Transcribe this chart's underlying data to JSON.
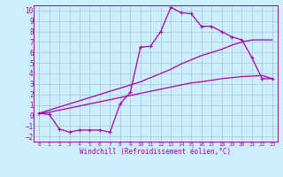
{
  "xlabel": "Windchill (Refroidissement éolien,°C)",
  "bg_color": "#cceeff",
  "grid_color": "#aaccdd",
  "line_color": "#aa00aa",
  "xlim": [
    -0.5,
    23.5
  ],
  "ylim": [
    -2.5,
    10.5
  ],
  "xticks": [
    0,
    1,
    2,
    3,
    4,
    5,
    6,
    7,
    8,
    9,
    10,
    11,
    12,
    13,
    14,
    15,
    16,
    17,
    18,
    19,
    20,
    21,
    22,
    23
  ],
  "yticks": [
    -2,
    -1,
    0,
    1,
    2,
    3,
    4,
    5,
    6,
    7,
    8,
    9,
    10
  ],
  "curve1_x": [
    0,
    1,
    2,
    3,
    4,
    5,
    6,
    7,
    8,
    9,
    10,
    11,
    12,
    13,
    14,
    15,
    16,
    17,
    18,
    19,
    20,
    21,
    22,
    23
  ],
  "curve1_y": [
    0.2,
    0.1,
    -1.3,
    -1.6,
    -1.4,
    -1.4,
    -1.4,
    -1.6,
    1.1,
    2.2,
    6.5,
    6.6,
    8.0,
    10.3,
    9.8,
    9.7,
    8.5,
    8.5,
    8.0,
    7.5,
    7.2,
    5.5,
    3.5,
    3.5
  ],
  "curve2_x": [
    0,
    1,
    2,
    3,
    4,
    5,
    6,
    7,
    8,
    9,
    10,
    11,
    12,
    13,
    14,
    15,
    16,
    17,
    18,
    19,
    20,
    21,
    22,
    23
  ],
  "curve2_y": [
    0.2,
    0.3,
    0.5,
    0.7,
    0.9,
    1.1,
    1.3,
    1.5,
    1.7,
    1.9,
    2.1,
    2.3,
    2.5,
    2.7,
    2.9,
    3.1,
    3.2,
    3.35,
    3.5,
    3.6,
    3.7,
    3.75,
    3.8,
    3.5
  ],
  "curve3_x": [
    0,
    1,
    2,
    3,
    4,
    5,
    6,
    7,
    8,
    9,
    10,
    11,
    12,
    13,
    14,
    15,
    16,
    17,
    18,
    19,
    20,
    21,
    22,
    23
  ],
  "curve3_y": [
    0.2,
    0.5,
    0.8,
    1.1,
    1.4,
    1.7,
    2.0,
    2.3,
    2.6,
    2.9,
    3.2,
    3.6,
    4.0,
    4.4,
    4.9,
    5.3,
    5.7,
    6.0,
    6.3,
    6.7,
    7.0,
    7.2,
    7.2,
    7.2
  ]
}
